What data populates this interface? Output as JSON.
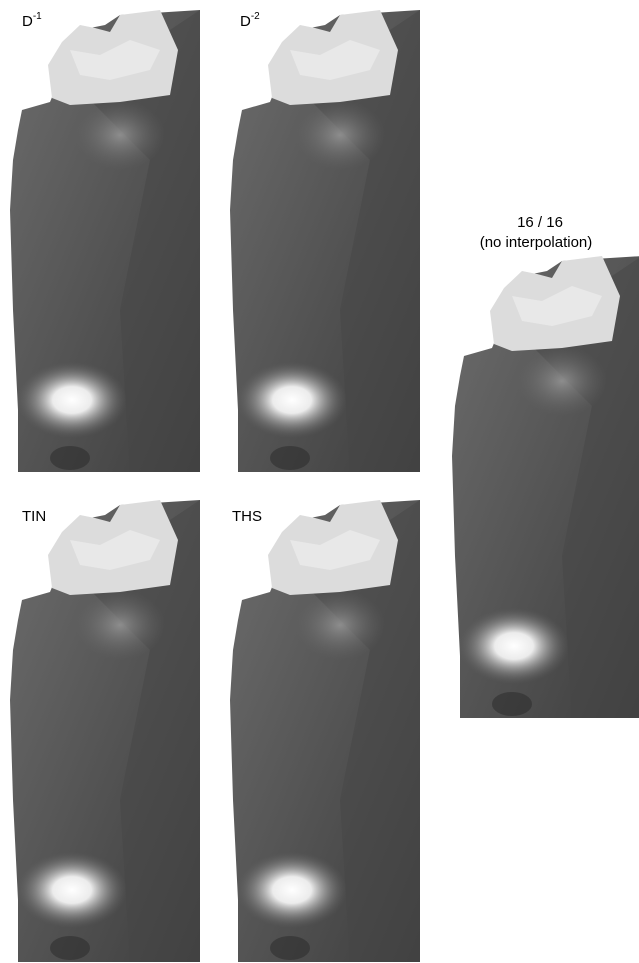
{
  "panels": [
    {
      "label": "D",
      "superscript": "-1"
    },
    {
      "label": "D",
      "superscript": "-2"
    },
    {
      "label": "TIN"
    },
    {
      "label": "THS"
    },
    {
      "label": "16 / 16",
      "sublabel": "(no interpolation)"
    }
  ]
}
